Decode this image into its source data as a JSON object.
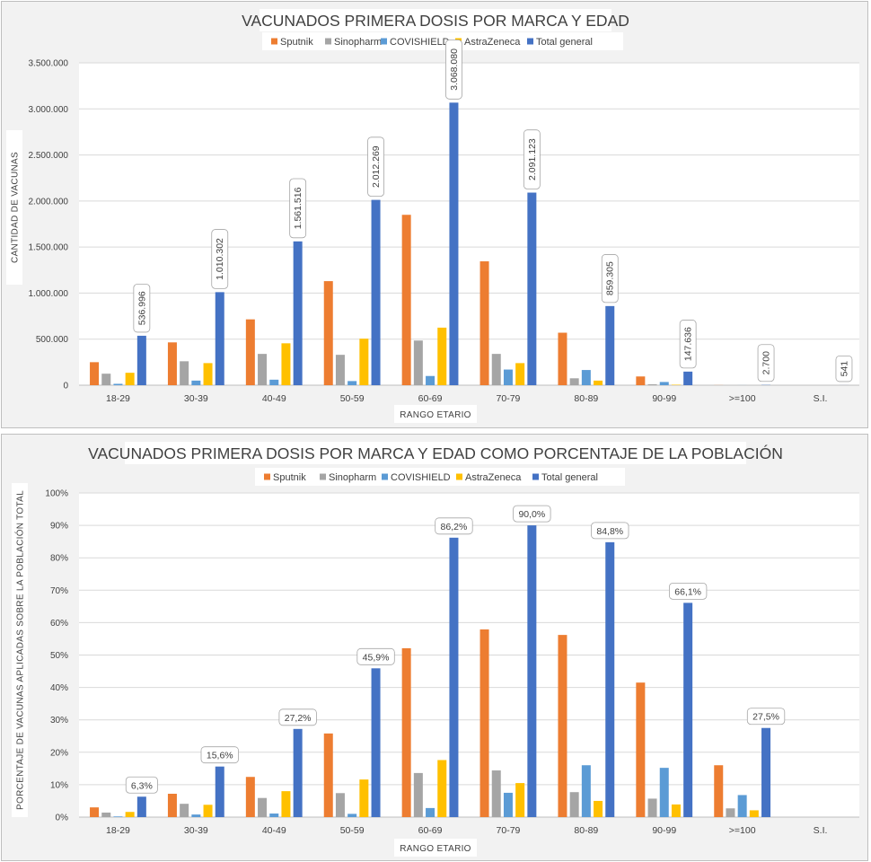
{
  "chart_data": [
    {
      "type": "bar",
      "title": "VACUNADOS PRIMERA DOSIS POR MARCA Y EDAD",
      "xlabel": "RANGO ETARIO",
      "ylabel": "CANTIDAD DE VACUNAS",
      "ylim": [
        0,
        3500000
      ],
      "yticks": [
        "0",
        "500.000",
        "1.000.000",
        "1.500.000",
        "2.000.000",
        "2.500.000",
        "3.000.000",
        "3.500.000"
      ],
      "grid": true,
      "legend_position": "top",
      "categories": [
        "18-29",
        "30-39",
        "40-49",
        "50-59",
        "60-69",
        "70-79",
        "80-89",
        "90-99",
        ">=100",
        "S.I."
      ],
      "series": [
        {
          "name": "Sputnik",
          "color": "#ed7d31",
          "values": [
            250000,
            465000,
            715000,
            1130000,
            1850000,
            1345000,
            570000,
            95000,
            1000,
            0
          ]
        },
        {
          "name": "Sinopharm",
          "color": "#a5a5a5",
          "values": [
            125000,
            260000,
            340000,
            330000,
            485000,
            340000,
            75000,
            10000,
            0,
            0
          ]
        },
        {
          "name": "COVISHIELD",
          "color": "#5b9bd5",
          "values": [
            15000,
            50000,
            60000,
            45000,
            100000,
            170000,
            165000,
            35000,
            500,
            0
          ]
        },
        {
          "name": "AstraZeneca",
          "color": "#ffc000",
          "values": [
            135000,
            240000,
            455000,
            505000,
            625000,
            240000,
            50000,
            5000,
            0,
            0
          ]
        },
        {
          "name": "Total general",
          "color": "#4472c4",
          "values": [
            536996,
            1010302,
            1561516,
            2012269,
            3068080,
            2091123,
            859305,
            147636,
            2700,
            541
          ],
          "labels": [
            "536.996",
            "1.010.302",
            "1.561.516",
            "2.012.269",
            "3.068.080",
            "2.091.123",
            "859.305",
            "147.636",
            "2.700",
            "541"
          ]
        }
      ]
    },
    {
      "type": "bar",
      "title": "VACUNADOS PRIMERA DOSIS POR MARCA Y EDAD COMO PORCENTAJE DE LA POBLACIÓN",
      "xlabel": "RANGO ETARIO",
      "ylabel": "PORCENTAJE DE VACUNAS APLICADAS SOBRE LA POBLACIÓN TOTAL",
      "ylim": [
        0,
        100
      ],
      "yticks": [
        "0%",
        "10%",
        "20%",
        "30%",
        "40%",
        "50%",
        "60%",
        "70%",
        "80%",
        "90%",
        "100%"
      ],
      "grid": true,
      "legend_position": "top",
      "categories": [
        "18-29",
        "30-39",
        "40-49",
        "50-59",
        "60-69",
        "70-79",
        "80-89",
        "90-99",
        ">=100",
        "S.I."
      ],
      "series": [
        {
          "name": "Sputnik",
          "color": "#ed7d31",
          "values": [
            3.0,
            7.2,
            12.4,
            25.8,
            52.1,
            57.9,
            56.2,
            41.5,
            16.0,
            0
          ]
        },
        {
          "name": "Sinopharm",
          "color": "#a5a5a5",
          "values": [
            1.4,
            4.1,
            5.9,
            7.4,
            13.6,
            14.4,
            7.7,
            5.7,
            2.7,
            0
          ]
        },
        {
          "name": "COVISHIELD",
          "color": "#5b9bd5",
          "values": [
            0.2,
            0.8,
            1.1,
            1.0,
            2.8,
            7.5,
            16.0,
            15.2,
            6.8,
            0
          ]
        },
        {
          "name": "AstraZeneca",
          "color": "#ffc000",
          "values": [
            1.6,
            3.8,
            8.0,
            11.6,
            17.6,
            10.5,
            5.0,
            3.9,
            2.1,
            0
          ]
        },
        {
          "name": "Total general",
          "color": "#4472c4",
          "values": [
            6.3,
            15.6,
            27.2,
            45.9,
            86.2,
            90.0,
            84.8,
            66.1,
            27.5,
            0
          ],
          "labels": [
            "6,3%",
            "15,6%",
            "27,2%",
            "45,9%",
            "86,2%",
            "90,0%",
            "84,8%",
            "66,1%",
            "27,5%",
            ""
          ]
        }
      ]
    }
  ]
}
